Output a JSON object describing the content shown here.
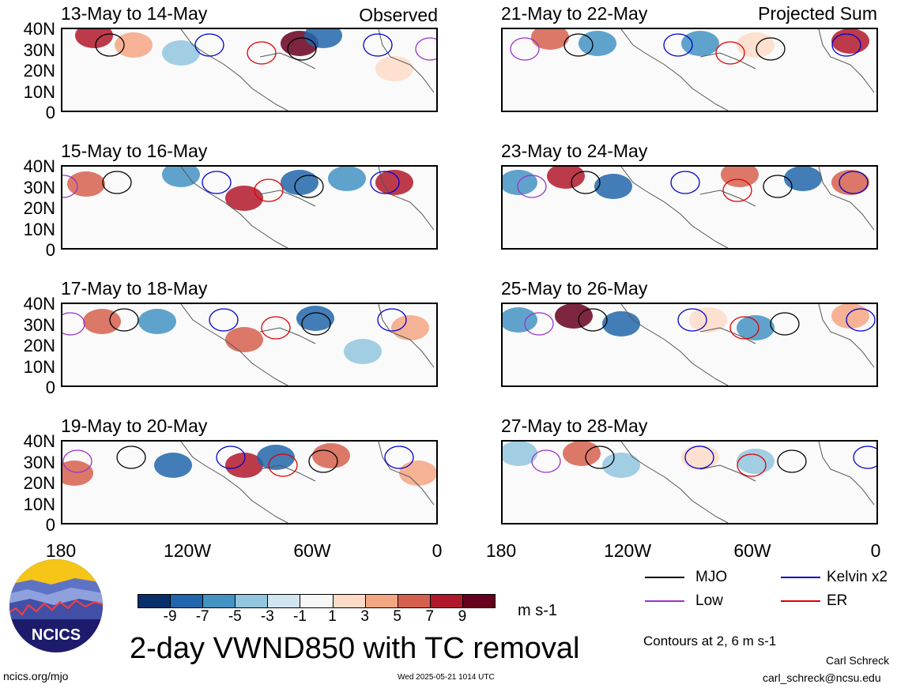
{
  "panels_left_header": "Observed",
  "panels_right_header": "Projected Sum",
  "panels": [
    {
      "title": "13-May to 14-May"
    },
    {
      "title": "15-May to 16-May"
    },
    {
      "title": "17-May to 18-May"
    },
    {
      "title": "19-May to 20-May"
    },
    {
      "title": "21-May to 22-May"
    },
    {
      "title": "23-May to 24-May"
    },
    {
      "title": "25-May to 26-May"
    },
    {
      "title": "27-May to 28-May"
    }
  ],
  "y_ticks": [
    "40N",
    "30N",
    "20N",
    "10N",
    "0"
  ],
  "x_ticks": [
    "180",
    "120W",
    "60W",
    "0"
  ],
  "colorbar": {
    "labels": [
      "-9",
      "-7",
      "-5",
      "-3",
      "-1",
      "1",
      "3",
      "5",
      "7",
      "9"
    ],
    "colors": [
      "#08306b",
      "#2166ac",
      "#4393c3",
      "#92c5de",
      "#d1e5f0",
      "#f7f7f7",
      "#fddbc7",
      "#f4a582",
      "#d6604d",
      "#b2182b",
      "#67001f"
    ],
    "units": "m s-1"
  },
  "legend": [
    {
      "label": "MJO",
      "color": "#000000"
    },
    {
      "label": "Kelvin x2",
      "color": "#0000cc"
    },
    {
      "label": "Low",
      "color": "#9933cc"
    },
    {
      "label": "ER",
      "color": "#dd0000"
    }
  ],
  "contours_note": "Contours at 2, 6 m s-1",
  "main_title": "2-day VWND850 with TC removal",
  "logo_text": "NCICS",
  "footer_url": "ncics.org/mjo",
  "footer_timestamp": "Wed 2025-05-21 1014 UTC",
  "author_name": "Carl Schreck",
  "author_email": "carl_schreck@ncsu.edu",
  "chart_data": {
    "type": "heatmap",
    "title": "2-day VWND850 with TC removal",
    "xlabel": "",
    "ylabel": "",
    "x_ticks": [
      "180",
      "120W",
      "60W",
      "0"
    ],
    "y_ticks": [
      "40N",
      "30N",
      "20N",
      "10N",
      "0"
    ],
    "xlim": [
      -180,
      0
    ],
    "ylim": [
      0,
      40
    ],
    "colorbar_levels": [
      -9,
      -7,
      -5,
      -3,
      -1,
      1,
      3,
      5,
      7,
      9
    ],
    "colorbar_units": "m s-1",
    "contour_levels": [
      2,
      6
    ],
    "series": [
      {
        "name": "MJO"
      },
      {
        "name": "Kelvin x2"
      },
      {
        "name": "Low"
      },
      {
        "name": "ER"
      }
    ]
  }
}
